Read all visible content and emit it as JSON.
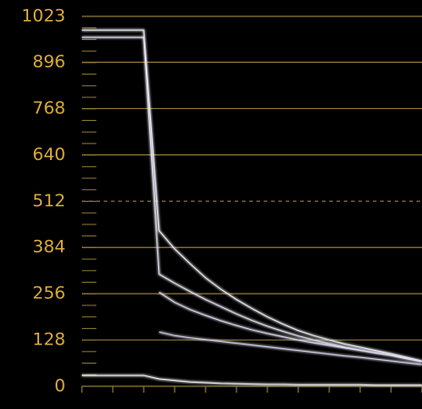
{
  "chart_data": {
    "type": "waveform",
    "categories": [
      null,
      null,
      null,
      null,
      null,
      null,
      null,
      null,
      null,
      null,
      null,
      null,
      null,
      null,
      null,
      null,
      null,
      null,
      null,
      null,
      null,
      null,
      null
    ],
    "series": [
      {
        "color": "#eeeef6",
        "values": [
          985,
          985,
          985,
          985,
          985,
          430,
          380,
          339,
          300,
          268,
          240,
          215,
          192,
          172,
          154,
          140,
          128,
          117,
          108,
          99,
          90,
          80,
          70
        ]
      },
      {
        "color": "#e4e4f2",
        "values": [
          965,
          965,
          965,
          965,
          965,
          310,
          285,
          262,
          240,
          220,
          200,
          182,
          166,
          152,
          139,
          128,
          118,
          108,
          100,
          92,
          85,
          76,
          68
        ]
      },
      {
        "color": "#dcdcee",
        "values": [
          null,
          null,
          null,
          null,
          null,
          260,
          232,
          212,
          196,
          181,
          168,
          156,
          146,
          137,
          128,
          120,
          113,
          106,
          99,
          92,
          86,
          78,
          70
        ]
      },
      {
        "color": "#d8d4e8",
        "values": [
          null,
          null,
          null,
          null,
          null,
          150,
          140,
          134,
          129,
          124,
          119,
          114,
          109,
          104,
          99,
          94,
          89,
          84,
          80,
          75,
          70,
          65,
          60
        ]
      },
      {
        "color": "#f4f4f4",
        "values": [
          30,
          30,
          30,
          30,
          30,
          20,
          16,
          12,
          10,
          8,
          7,
          6,
          5,
          5,
          4,
          4,
          4,
          4,
          4,
          3,
          3,
          3,
          3
        ]
      }
    ],
    "ylim": [
      0,
      1023
    ],
    "yticks": [
      0,
      128,
      256,
      384,
      512,
      640,
      768,
      896,
      1023
    ],
    "grid": true,
    "grid_color": "#8f7a35",
    "dashed_tick_index": 4
  }
}
